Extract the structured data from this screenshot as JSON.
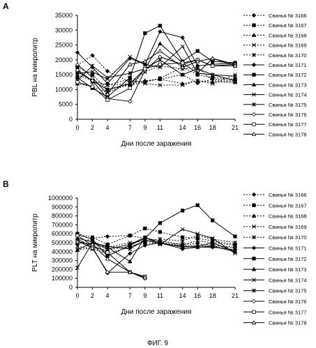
{
  "figure_caption": "ФИГ. 9",
  "legend_prefix": "Свинья №",
  "chart_data": [
    {
      "panel": "A",
      "type": "line",
      "ylabel": "PBL на микролитр",
      "xlabel": "Дни после заражения",
      "xlim": [
        0,
        21
      ],
      "ylim": [
        0,
        35000
      ],
      "xticks": [
        0,
        2,
        4,
        7,
        9,
        11,
        14,
        16,
        18,
        21
      ],
      "yticks": [
        0,
        5000,
        10000,
        15000,
        20000,
        25000,
        30000,
        35000
      ],
      "grid": false,
      "legend_position": "right",
      "series": [
        {
          "name": "3166",
          "marker": "diamond",
          "dash": "dotted",
          "x": [
            0,
            2,
            4,
            7,
            9,
            11,
            14,
            16,
            18,
            21
          ],
          "y": [
            18200,
            21500,
            16200,
            12500,
            12800,
            13500,
            15000,
            12200,
            13500,
            13000
          ]
        },
        {
          "name": "3167",
          "marker": "square",
          "dash": "dotted",
          "x": [
            0,
            2,
            4,
            7,
            9,
            11,
            14,
            16,
            18,
            21
          ],
          "y": [
            17500,
            15000,
            10000,
            11500,
            12500,
            13800,
            17500,
            15000,
            14000,
            13500
          ]
        },
        {
          "name": "3168",
          "marker": "triangle",
          "dash": "dotted",
          "x": [
            0,
            2,
            4,
            7,
            9,
            11,
            14,
            16,
            18,
            21
          ],
          "y": [
            12000,
            11000,
            9000,
            12000,
            13000,
            13500,
            12000,
            13000,
            12500,
            12500
          ]
        },
        {
          "name": "3169",
          "marker": "x",
          "dash": "dotted",
          "x": [
            0,
            2,
            4,
            7,
            9,
            11,
            14,
            16,
            18,
            21
          ],
          "y": [
            15000,
            13000,
            11500,
            13500,
            12000,
            11500,
            11500,
            13000,
            12000,
            15000
          ]
        },
        {
          "name": "3170",
          "marker": "star",
          "dash": "dotted",
          "x": [
            0,
            2,
            4,
            7,
            9,
            11,
            14,
            16,
            18,
            21
          ],
          "y": [
            17000,
            12500,
            11500,
            12000,
            16000,
            18000,
            17000,
            17500,
            13000,
            12500
          ]
        },
        {
          "name": "3171",
          "marker": "diamond",
          "dash": "solid",
          "x": [
            0,
            2,
            4,
            7,
            9,
            11,
            14,
            16,
            18,
            21
          ],
          "y": [
            22500,
            17500,
            12000,
            20500,
            18500,
            29500,
            27500,
            18000,
            18500,
            19000
          ]
        },
        {
          "name": "3172",
          "marker": "square",
          "dash": "solid",
          "x": [
            0,
            2,
            4,
            7,
            9,
            11,
            14,
            16,
            18,
            21
          ],
          "y": [
            14000,
            10500,
            7500,
            14000,
            29000,
            31500,
            19500,
            23000,
            19500,
            19000
          ]
        },
        {
          "name": "3173",
          "marker": "triangle",
          "dash": "solid",
          "x": [
            0,
            2,
            4,
            7,
            9,
            11,
            14,
            16,
            18,
            21
          ],
          "y": [
            16000,
            13000,
            10000,
            12000,
            17000,
            25500,
            19000,
            15500,
            20500,
            18500
          ]
        },
        {
          "name": "3174",
          "marker": "x",
          "dash": "solid",
          "x": [
            0,
            2,
            4,
            7,
            9,
            11,
            14,
            16,
            18,
            21
          ],
          "y": [
            15500,
            16000,
            13500,
            21000,
            18500,
            17500,
            24500,
            15500,
            15000,
            13000
          ]
        },
        {
          "name": "3175",
          "marker": "star",
          "dash": "solid",
          "x": [
            0,
            2,
            4,
            7,
            9,
            11,
            14,
            16,
            18,
            21
          ],
          "y": [
            13000,
            18000,
            14000,
            15500,
            17000,
            20000,
            15000,
            17000,
            15000,
            14500
          ]
        },
        {
          "name": "3176",
          "marker": "diamond-open",
          "dash": "solid",
          "x": [
            0,
            2,
            4,
            7,
            9,
            11,
            14,
            16,
            18,
            21
          ],
          "y": [
            16500,
            13000,
            7000,
            6000,
            16500,
            21000,
            18500,
            20000,
            18000,
            18500
          ]
        },
        {
          "name": "3177",
          "marker": "square-open",
          "dash": "solid",
          "x": [
            0,
            2,
            4,
            7,
            9,
            11,
            14,
            16,
            18,
            21
          ],
          "y": [
            12500,
            11000,
            6500,
            10500,
            17000,
            18500,
            19000,
            20000,
            18000,
            18000
          ]
        },
        {
          "name": "3178",
          "marker": "triangle-open",
          "dash": "solid",
          "x": [
            0,
            2,
            4,
            7,
            9,
            11,
            14,
            16,
            18,
            21
          ],
          "y": [
            18500,
            14000,
            8500,
            18500,
            19500,
            23000,
            17500,
            19500,
            20500,
            18000
          ]
        }
      ]
    },
    {
      "panel": "B",
      "type": "line",
      "ylabel": "PLT на микролитр",
      "xlabel": "Дни после заражения",
      "xlim": [
        0,
        21
      ],
      "ylim": [
        0,
        1000000
      ],
      "xticks": [
        0,
        2,
        4,
        7,
        9,
        11,
        14,
        16,
        18,
        21
      ],
      "yticks": [
        0,
        100000,
        200000,
        300000,
        400000,
        500000,
        600000,
        700000,
        800000,
        900000,
        1000000
      ],
      "grid": false,
      "legend_position": "right",
      "series": [
        {
          "name": "3166",
          "marker": "diamond",
          "dash": "dotted",
          "x": [
            0,
            2,
            4,
            7,
            9,
            11,
            14,
            16,
            18,
            21
          ],
          "y": [
            480000,
            550000,
            570000,
            580000,
            550000,
            520000,
            480000,
            490000,
            470000,
            450000
          ]
        },
        {
          "name": "3167",
          "marker": "square",
          "dash": "dotted",
          "x": [
            0,
            2,
            4,
            7,
            9,
            11,
            14,
            16,
            18,
            21
          ],
          "y": [
            600000,
            560000,
            480000,
            580000,
            660000,
            620000,
            560000,
            550000,
            520000,
            480000
          ]
        },
        {
          "name": "3168",
          "marker": "triangle",
          "dash": "dotted",
          "x": [
            0,
            2,
            4,
            7,
            9,
            11,
            14,
            16,
            18,
            21
          ],
          "y": [
            420000,
            440000,
            420000,
            460000,
            500000,
            490000,
            470000,
            470000,
            460000,
            440000
          ]
        },
        {
          "name": "3169",
          "marker": "x",
          "dash": "dotted",
          "x": [
            0,
            2,
            4,
            7,
            9,
            11,
            14,
            16,
            18,
            21
          ],
          "y": [
            500000,
            480000,
            450000,
            500000,
            520000,
            500000,
            480000,
            520000,
            500000,
            470000
          ]
        },
        {
          "name": "3170",
          "marker": "star",
          "dash": "dotted",
          "x": [
            0,
            2,
            4,
            7,
            9,
            11,
            14,
            16,
            18,
            21
          ],
          "y": [
            460000,
            430000,
            380000,
            450000,
            520000,
            540000,
            520000,
            580000,
            540000,
            500000
          ]
        },
        {
          "name": "3171",
          "marker": "diamond",
          "dash": "solid",
          "x": [
            0,
            2,
            4,
            7,
            9,
            11,
            14,
            16,
            18,
            21
          ],
          "y": [
            540000,
            450000,
            160000,
            380000,
            470000,
            500000,
            430000,
            450000,
            450000,
            420000
          ]
        },
        {
          "name": "3172",
          "marker": "square",
          "dash": "solid",
          "x": [
            0,
            2,
            4,
            7,
            9,
            11,
            14,
            16,
            18,
            21
          ],
          "y": [
            590000,
            540000,
            350000,
            470000,
            550000,
            720000,
            860000,
            920000,
            750000,
            570000
          ]
        },
        {
          "name": "3173",
          "marker": "triangle",
          "dash": "solid",
          "x": [
            0,
            2,
            4,
            7,
            9,
            11,
            14,
            16,
            18,
            21
          ],
          "y": [
            550000,
            510000,
            450000,
            290000,
            560000,
            500000,
            450000,
            460000,
            500000,
            400000
          ]
        },
        {
          "name": "3174",
          "marker": "x",
          "dash": "solid",
          "x": [
            0,
            2,
            4,
            7,
            9,
            11,
            14,
            16,
            18,
            21
          ],
          "y": [
            420000,
            500000,
            430000,
            480000,
            560000,
            480000,
            650000,
            600000,
            550000,
            380000
          ]
        },
        {
          "name": "3175",
          "marker": "star",
          "dash": "solid",
          "x": [
            0,
            2,
            4,
            7,
            9,
            11,
            14,
            16,
            18,
            21
          ],
          "y": [
            220000,
            500000,
            460000,
            430000,
            530000,
            490000,
            460000,
            450000,
            460000,
            400000
          ]
        },
        {
          "name": "3176",
          "marker": "diamond-open",
          "dash": "solid",
          "x": [
            0,
            2,
            4,
            7,
            9
          ],
          "y": [
            520000,
            440000,
            170000,
            170000,
            100000
          ]
        },
        {
          "name": "3177",
          "marker": "square-open",
          "dash": "solid",
          "x": [
            0,
            2,
            4,
            7,
            9
          ],
          "y": [
            580000,
            470000,
            390000,
            170000,
            120000
          ]
        },
        {
          "name": "3178",
          "marker": "triangle-open",
          "dash": "solid",
          "x": [
            0,
            2,
            4,
            7,
            9
          ],
          "y": [
            510000,
            480000,
            320000,
            170000,
            110000
          ]
        }
      ]
    }
  ]
}
